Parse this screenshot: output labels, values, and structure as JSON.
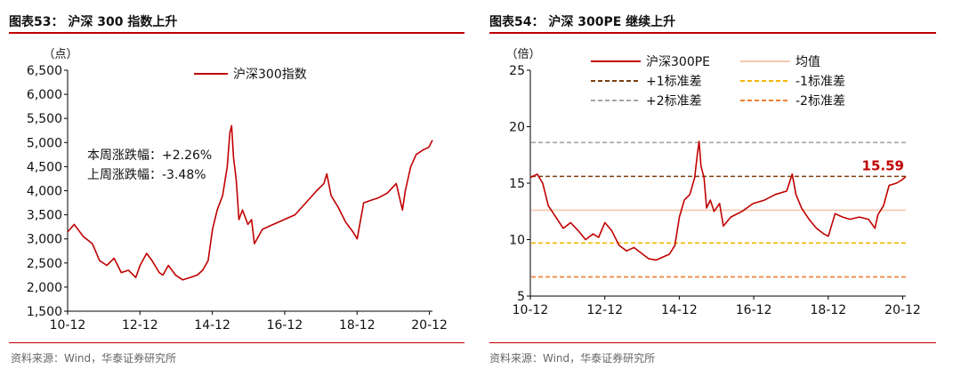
{
  "left": {
    "figure_title": "图表53： 沪深 300 指数上升",
    "source": "资料来源：Wind，华泰证券研究所"
  },
  "right": {
    "figure_title": "图表54： 沪深 300PE 继续上升",
    "source": "资料来源：Wind，华泰证券研究所"
  },
  "chart_data": [
    {
      "type": "line",
      "title": "沪深 300 指数上升",
      "ylabel": "（点）",
      "xlabel": "",
      "ylim": [
        1500,
        6500
      ],
      "yticks": [
        "1,500",
        "2,000",
        "2,500",
        "3,000",
        "3,500",
        "4,000",
        "4,500",
        "5,000",
        "5,500",
        "6,000",
        "6,500"
      ],
      "xticks": [
        "10-12",
        "12-12",
        "14-12",
        "16-12",
        "18-12",
        "20-12"
      ],
      "xlim": [
        2010.917,
        2021.0
      ],
      "legend": "top-center",
      "annotations": [
        "本周涨跌幅：+2.26%",
        "上周涨跌幅：-3.48%"
      ],
      "series": [
        {
          "name": "沪深300指数",
          "color": "#c00000",
          "x": [
            2010.92,
            2011.1,
            2011.35,
            2011.6,
            2011.8,
            2012.0,
            2012.2,
            2012.4,
            2012.6,
            2012.8,
            2012.92,
            2013.1,
            2013.25,
            2013.45,
            2013.55,
            2013.7,
            2013.9,
            2014.1,
            2014.3,
            2014.5,
            2014.65,
            2014.8,
            2014.92,
            2015.05,
            2015.2,
            2015.33,
            2015.4,
            2015.45,
            2015.5,
            2015.58,
            2015.65,
            2015.75,
            2015.9,
            2016.0,
            2016.08,
            2016.3,
            2016.6,
            2016.9,
            2017.2,
            2017.5,
            2017.8,
            2018.0,
            2018.08,
            2018.2,
            2018.4,
            2018.6,
            2018.8,
            2018.92,
            2019.1,
            2019.3,
            2019.5,
            2019.75,
            2020.0,
            2020.17,
            2020.25,
            2020.4,
            2020.55,
            2020.75,
            2020.9,
            2021.0
          ],
          "values": [
            3150,
            3300,
            3050,
            2900,
            2550,
            2450,
            2600,
            2300,
            2350,
            2200,
            2450,
            2700,
            2550,
            2300,
            2250,
            2450,
            2250,
            2150,
            2200,
            2250,
            2350,
            2550,
            3200,
            3600,
            3900,
            4500,
            5200,
            5350,
            4700,
            4200,
            3400,
            3600,
            3300,
            3400,
            2900,
            3200,
            3300,
            3400,
            3500,
            3750,
            4000,
            4150,
            4350,
            3900,
            3650,
            3350,
            3150,
            3000,
            3750,
            3800,
            3850,
            3950,
            4150,
            3600,
            4000,
            4500,
            4750,
            4850,
            4900,
            5050
          ]
        }
      ]
    },
    {
      "type": "line",
      "title": "沪深 300PE 继续上升",
      "ylabel": "（倍）",
      "xlabel": "",
      "ylim": [
        5,
        25
      ],
      "yticks": [
        "5",
        "10",
        "15",
        "20",
        "25"
      ],
      "xticks": [
        "10-12",
        "12-12",
        "14-12",
        "16-12",
        "18-12",
        "20-12"
      ],
      "xlim": [
        2010.917,
        2021.0
      ],
      "legend": "top",
      "latest_value_label": "15.59",
      "series": [
        {
          "name": "沪深300PE",
          "color": "#c00000",
          "style": "solid",
          "x": [
            2010.92,
            2011.1,
            2011.25,
            2011.4,
            2011.6,
            2011.8,
            2012.0,
            2012.2,
            2012.4,
            2012.6,
            2012.75,
            2012.92,
            2013.1,
            2013.3,
            2013.5,
            2013.7,
            2013.9,
            2014.1,
            2014.3,
            2014.5,
            2014.65,
            2014.8,
            2014.92,
            2015.05,
            2015.2,
            2015.33,
            2015.4,
            2015.45,
            2015.5,
            2015.58,
            2015.65,
            2015.75,
            2015.85,
            2016.0,
            2016.1,
            2016.3,
            2016.6,
            2016.9,
            2017.2,
            2017.5,
            2017.8,
            2017.95,
            2018.05,
            2018.2,
            2018.4,
            2018.6,
            2018.8,
            2018.92,
            2019.1,
            2019.3,
            2019.5,
            2019.75,
            2020.0,
            2020.17,
            2020.25,
            2020.4,
            2020.55,
            2020.75,
            2020.9,
            2021.0
          ],
          "values": [
            15.5,
            15.8,
            15.0,
            13.0,
            12.0,
            11.0,
            11.5,
            10.8,
            10.0,
            10.5,
            10.2,
            11.5,
            10.8,
            9.5,
            9.0,
            9.3,
            8.8,
            8.3,
            8.2,
            8.5,
            8.7,
            9.5,
            12.0,
            13.5,
            14.0,
            15.5,
            17.5,
            18.7,
            16.5,
            15.5,
            12.8,
            13.5,
            12.5,
            13.2,
            11.2,
            12.0,
            12.5,
            13.2,
            13.5,
            14.0,
            14.3,
            15.8,
            14.0,
            12.8,
            11.8,
            11.0,
            10.5,
            10.3,
            12.3,
            12.0,
            11.8,
            12.0,
            11.8,
            11.0,
            12.2,
            13.0,
            14.8,
            15.0,
            15.3,
            15.59
          ]
        },
        {
          "name": "均值",
          "color": "#f4c7ad",
          "style": "solid",
          "values": [
            12.6
          ]
        },
        {
          "name": "+1标准差",
          "color": "#7b3f10",
          "style": "dashed",
          "values": [
            15.6
          ]
        },
        {
          "name": "-1标准差",
          "color": "#f2b800",
          "style": "dashed",
          "values": [
            9.7
          ]
        },
        {
          "name": "+2标准差",
          "color": "#a6a6a6",
          "style": "dashed",
          "values": [
            18.6
          ]
        },
        {
          "name": "-2标准差",
          "color": "#f08030",
          "style": "dashed",
          "values": [
            6.7
          ]
        }
      ]
    }
  ]
}
